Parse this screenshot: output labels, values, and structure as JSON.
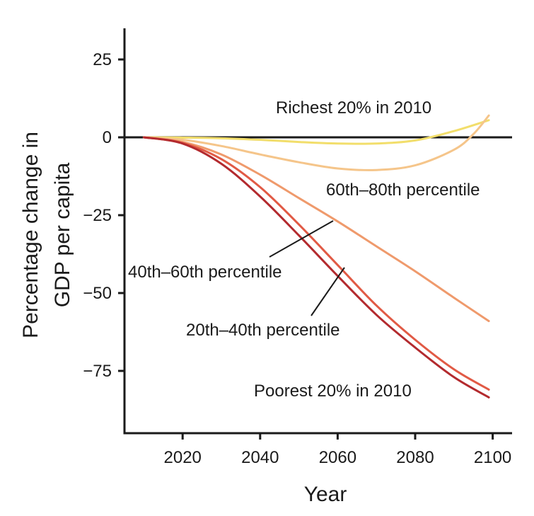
{
  "chart_data": {
    "type": "line",
    "title": "",
    "xlabel": "Year",
    "ylabel_lines": [
      "Percentage change in",
      "GDP per capita"
    ],
    "xlim": [
      2005,
      2105
    ],
    "ylim": [
      -95,
      35
    ],
    "xticks": [
      2020,
      2040,
      2060,
      2080,
      2100
    ],
    "yticks": [
      25,
      0,
      -25,
      -50,
      -75
    ],
    "ytick_labels": [
      "25",
      "0",
      "−25",
      "−50",
      "−75"
    ],
    "grid": false,
    "legend": "none",
    "series": [
      {
        "name": "Richest 20% in 2010",
        "color": "#f2de6b",
        "x": [
          2010,
          2020,
          2030,
          2040,
          2050,
          2060,
          2070,
          2080,
          2090,
          2099
        ],
        "y": [
          0,
          -0.1,
          -0.3,
          -0.8,
          -1.5,
          -2.0,
          -2.0,
          -1.0,
          2.0,
          5.5
        ]
      },
      {
        "name": "60th–80th percentile",
        "color": "#f5c58a",
        "x": [
          2010,
          2020,
          2030,
          2040,
          2050,
          2060,
          2070,
          2080,
          2090,
          2095,
          2099
        ],
        "y": [
          0,
          -0.8,
          -2.8,
          -5.5,
          -8.0,
          -10.0,
          -10.5,
          -9.0,
          -4.0,
          1.0,
          7.0
        ]
      },
      {
        "name": "40th–60th percentile",
        "color": "#ef9a6c",
        "x": [
          2010,
          2020,
          2030,
          2040,
          2050,
          2060,
          2070,
          2080,
          2090,
          2099
        ],
        "y": [
          0,
          -1.5,
          -5.5,
          -12.0,
          -19.5,
          -27.0,
          -35.0,
          -43.0,
          -51.5,
          -59.0
        ]
      },
      {
        "name": "20th–40th percentile",
        "color": "#e15a45",
        "x": [
          2010,
          2020,
          2030,
          2040,
          2050,
          2060,
          2070,
          2080,
          2090,
          2099
        ],
        "y": [
          0,
          -1.8,
          -7.0,
          -16.0,
          -28.0,
          -41.0,
          -54.0,
          -65.0,
          -74.5,
          -81.0
        ]
      },
      {
        "name": "Poorest 20% in 2010",
        "color": "#b32a2e",
        "x": [
          2010,
          2020,
          2030,
          2040,
          2050,
          2060,
          2070,
          2080,
          2090,
          2099
        ],
        "y": [
          0,
          -2.0,
          -8.5,
          -19.0,
          -31.5,
          -44.5,
          -57.0,
          -67.5,
          -77.0,
          -83.5
        ]
      }
    ],
    "annotations": {
      "richest": "Richest 20% in 2010",
      "p60_80": "60th–80th percentile",
      "p40_60": "40th–60th percentile",
      "p20_40": "20th–40th percentile",
      "poorest": "Poorest 20% in 2010"
    }
  }
}
